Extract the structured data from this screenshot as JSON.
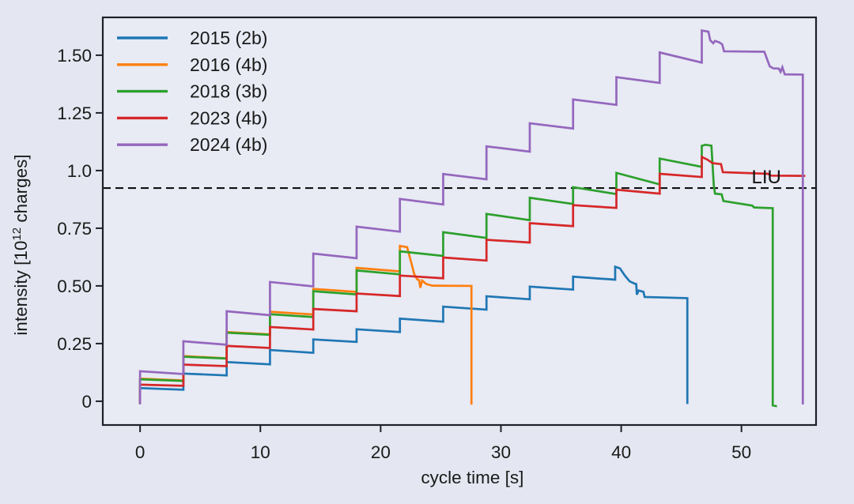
{
  "figure": {
    "background": "#e4e7f1",
    "plot_background": "#e8eaf4",
    "frame_color": "#20202a",
    "text_color": "#1a1a1a"
  },
  "chart_data": {
    "type": "line",
    "title": "",
    "xlabel": "cycle time [s]",
    "ylabel": "intensity [10¹² charges]",
    "ylabel_parts": {
      "pre": "intensity [10",
      "sup": "12",
      "post": " charges]"
    },
    "xlim": [
      -3.1,
      56.2
    ],
    "ylim": [
      -0.103,
      1.664
    ],
    "xticks": [
      {
        "v": 0,
        "label": "0"
      },
      {
        "v": 10,
        "label": "10"
      },
      {
        "v": 20,
        "label": "20"
      },
      {
        "v": 30,
        "label": "30"
      },
      {
        "v": 40,
        "label": "40"
      },
      {
        "v": 50,
        "label": "50"
      }
    ],
    "yticks": [
      {
        "v": 0,
        "label": "0"
      },
      {
        "v": 0.25,
        "label": "0.25"
      },
      {
        "v": 0.5,
        "label": "0.50"
      },
      {
        "v": 0.75,
        "label": "0.75"
      },
      {
        "v": 1.0,
        "label": "1.0"
      },
      {
        "v": 1.25,
        "label": "1.25"
      },
      {
        "v": 1.5,
        "label": "1.50"
      }
    ],
    "grid": false,
    "legend_position": "upper-left",
    "threshold": {
      "y": 0.924,
      "label": "LIU",
      "color": "#111111",
      "style": "dashed",
      "label_x": 53.3,
      "label_y": 0.945
    },
    "series": [
      {
        "name": "2015 (2b)",
        "color": "#1f77b4",
        "points": [
          [
            0,
            -0.01
          ],
          [
            0,
            0.057
          ],
          [
            3.6,
            0.05
          ],
          [
            3.6,
            0.12
          ],
          [
            7.2,
            0.112
          ],
          [
            7.2,
            0.17
          ],
          [
            10.8,
            0.16
          ],
          [
            10.8,
            0.222
          ],
          [
            14.4,
            0.21
          ],
          [
            14.4,
            0.268
          ],
          [
            18,
            0.257
          ],
          [
            18,
            0.312
          ],
          [
            21.6,
            0.3
          ],
          [
            21.6,
            0.358
          ],
          [
            25.2,
            0.345
          ],
          [
            25.2,
            0.41
          ],
          [
            28.8,
            0.397
          ],
          [
            28.8,
            0.455
          ],
          [
            32.4,
            0.442
          ],
          [
            32.4,
            0.497
          ],
          [
            36,
            0.484
          ],
          [
            36,
            0.54
          ],
          [
            39.5,
            0.527
          ],
          [
            39.5,
            0.583
          ],
          [
            39.9,
            0.576
          ],
          [
            40.3,
            0.545
          ],
          [
            40.7,
            0.52
          ],
          [
            41.1,
            0.51
          ],
          [
            41.25,
            0.508
          ],
          [
            41.3,
            0.462
          ],
          [
            41.45,
            0.48
          ],
          [
            41.85,
            0.474
          ],
          [
            41.95,
            0.452
          ],
          [
            45.5,
            0.447
          ],
          [
            45.5,
            -0.012
          ]
        ]
      },
      {
        "name": "2016 (4b)",
        "color": "#ff7f0e",
        "points": [
          [
            0,
            -0.01
          ],
          [
            0,
            0.098
          ],
          [
            3.6,
            0.09
          ],
          [
            3.6,
            0.196
          ],
          [
            7.2,
            0.186
          ],
          [
            7.2,
            0.3
          ],
          [
            10.8,
            0.29
          ],
          [
            10.8,
            0.388
          ],
          [
            14.4,
            0.376
          ],
          [
            14.4,
            0.487
          ],
          [
            18,
            0.474
          ],
          [
            18,
            0.578
          ],
          [
            21.6,
            0.563
          ],
          [
            21.6,
            0.673
          ],
          [
            22.2,
            0.668
          ],
          [
            22.5,
            0.61
          ],
          [
            22.8,
            0.55
          ],
          [
            23.05,
            0.528
          ],
          [
            23.2,
            0.525
          ],
          [
            23.3,
            0.492
          ],
          [
            23.45,
            0.523
          ],
          [
            23.8,
            0.508
          ],
          [
            24.3,
            0.501
          ],
          [
            27.55,
            0.5
          ],
          [
            27.55,
            -0.015
          ]
        ]
      },
      {
        "name": "2018 (3b)",
        "color": "#2ca02c",
        "points": [
          [
            0,
            -0.013
          ],
          [
            0,
            0.095
          ],
          [
            3.6,
            0.088
          ],
          [
            3.6,
            0.193
          ],
          [
            7.2,
            0.185
          ],
          [
            7.2,
            0.297
          ],
          [
            10.8,
            0.288
          ],
          [
            10.8,
            0.377
          ],
          [
            14.4,
            0.365
          ],
          [
            14.4,
            0.477
          ],
          [
            18,
            0.463
          ],
          [
            18,
            0.567
          ],
          [
            21.6,
            0.55
          ],
          [
            21.6,
            0.65
          ],
          [
            25.2,
            0.63
          ],
          [
            25.2,
            0.733
          ],
          [
            28.8,
            0.708
          ],
          [
            28.8,
            0.812
          ],
          [
            32.4,
            0.785
          ],
          [
            32.4,
            0.882
          ],
          [
            36,
            0.855
          ],
          [
            36,
            0.928
          ],
          [
            39.6,
            0.898
          ],
          [
            39.6,
            0.99
          ],
          [
            43.2,
            0.94
          ],
          [
            43.2,
            1.052
          ],
          [
            46.7,
            1.016
          ],
          [
            46.7,
            1.107
          ],
          [
            47.0,
            1.112
          ],
          [
            47.5,
            1.108
          ],
          [
            47.7,
            0.935
          ],
          [
            47.8,
            0.9
          ],
          [
            48.35,
            0.897
          ],
          [
            48.5,
            0.868
          ],
          [
            50.9,
            0.848
          ],
          [
            51.05,
            0.84
          ],
          [
            52.6,
            0.837
          ],
          [
            52.6,
            -0.018
          ],
          [
            52.95,
            -0.022
          ]
        ]
      },
      {
        "name": "2023 (4b)",
        "color": "#d62728",
        "points": [
          [
            0,
            -0.01
          ],
          [
            0,
            0.072
          ],
          [
            3.6,
            0.067
          ],
          [
            3.6,
            0.159
          ],
          [
            7.2,
            0.152
          ],
          [
            7.2,
            0.24
          ],
          [
            10.8,
            0.231
          ],
          [
            10.8,
            0.322
          ],
          [
            14.4,
            0.311
          ],
          [
            14.4,
            0.4
          ],
          [
            18,
            0.39
          ],
          [
            18,
            0.467
          ],
          [
            21.6,
            0.456
          ],
          [
            21.6,
            0.545
          ],
          [
            25.2,
            0.533
          ],
          [
            25.2,
            0.623
          ],
          [
            28.8,
            0.61
          ],
          [
            28.8,
            0.7
          ],
          [
            32.4,
            0.688
          ],
          [
            32.4,
            0.772
          ],
          [
            36,
            0.759
          ],
          [
            36,
            0.85
          ],
          [
            39.6,
            0.838
          ],
          [
            39.6,
            0.917
          ],
          [
            43.2,
            0.9
          ],
          [
            43.2,
            0.986
          ],
          [
            46.7,
            0.972
          ],
          [
            46.7,
            1.059
          ],
          [
            47.15,
            1.048
          ],
          [
            47.6,
            1.032
          ],
          [
            48.3,
            1.028
          ],
          [
            48.45,
            0.993
          ],
          [
            52.2,
            0.986
          ],
          [
            52.45,
            0.978
          ],
          [
            55.3,
            0.977
          ]
        ]
      },
      {
        "name": "2024 (4b)",
        "color": "#9467bd",
        "points": [
          [
            0,
            -0.013
          ],
          [
            0,
            0.13
          ],
          [
            3.6,
            0.118
          ],
          [
            3.6,
            0.26
          ],
          [
            7.2,
            0.245
          ],
          [
            7.2,
            0.39
          ],
          [
            10.8,
            0.373
          ],
          [
            10.8,
            0.517
          ],
          [
            14.4,
            0.498
          ],
          [
            14.4,
            0.64
          ],
          [
            18,
            0.62
          ],
          [
            18,
            0.757
          ],
          [
            21.6,
            0.735
          ],
          [
            21.6,
            0.877
          ],
          [
            25.2,
            0.853
          ],
          [
            25.2,
            0.985
          ],
          [
            28.8,
            0.962
          ],
          [
            28.8,
            1.105
          ],
          [
            32.4,
            1.082
          ],
          [
            32.4,
            1.205
          ],
          [
            36,
            1.182
          ],
          [
            36,
            1.308
          ],
          [
            39.6,
            1.285
          ],
          [
            39.6,
            1.405
          ],
          [
            43.2,
            1.38
          ],
          [
            43.2,
            1.512
          ],
          [
            46.7,
            1.468
          ],
          [
            46.7,
            1.607
          ],
          [
            47.25,
            1.602
          ],
          [
            47.4,
            1.565
          ],
          [
            47.65,
            1.552
          ],
          [
            47.8,
            1.562
          ],
          [
            48.15,
            1.556
          ],
          [
            48.4,
            1.547
          ],
          [
            48.55,
            1.517
          ],
          [
            51.9,
            1.515
          ],
          [
            52.35,
            1.452
          ],
          [
            52.65,
            1.443
          ],
          [
            53.1,
            1.442
          ],
          [
            53.25,
            1.428
          ],
          [
            53.4,
            1.448
          ],
          [
            53.6,
            1.417
          ],
          [
            55.1,
            1.416
          ],
          [
            55.1,
            -0.014
          ]
        ]
      }
    ]
  }
}
